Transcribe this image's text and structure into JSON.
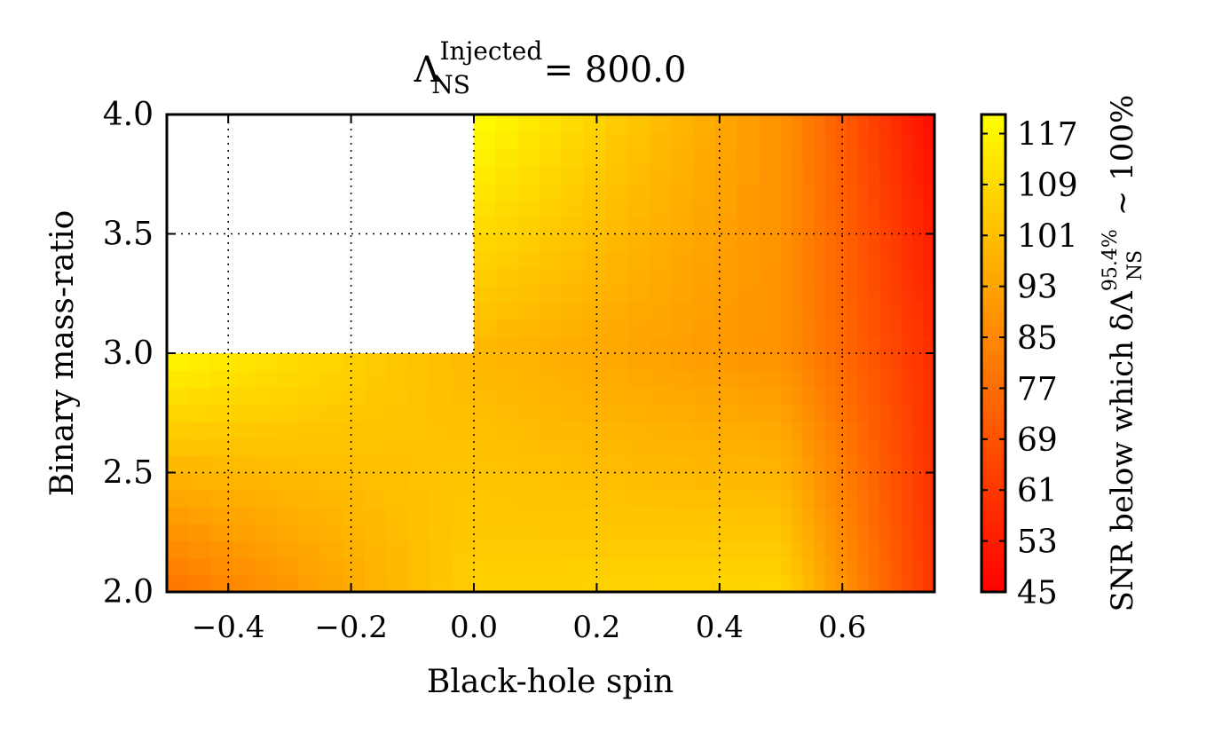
{
  "chart_data": {
    "type": "heatmap",
    "title": {
      "symbol": "Λ",
      "superscript": "Injected",
      "subscript": "NS",
      "rest": " = 800.0"
    },
    "xlabel": "Black-hole spin",
    "ylabel": "Binary mass-ratio",
    "xlim": [
      -0.5,
      0.75
    ],
    "ylim": [
      2.0,
      4.0
    ],
    "xticks": [
      -0.4,
      -0.2,
      0.0,
      0.2,
      0.4,
      0.6
    ],
    "xtick_labels": [
      "−0.4",
      "−0.2",
      "0.0",
      "0.2",
      "0.4",
      "0.6"
    ],
    "yticks": [
      2.0,
      2.5,
      3.0,
      3.5,
      4.0
    ],
    "ytick_labels": [
      "2.0",
      "2.5",
      "3.0",
      "3.5",
      "4.0"
    ],
    "grid": true,
    "colorbar": {
      "label": {
        "prefix": "SNR below which δΛ",
        "superscript": "95.4%",
        "subscript": "NS",
        "suffix": " ∼ 100%"
      },
      "vmin": 45,
      "vmax": 120,
      "ticks": [
        45,
        53,
        61,
        69,
        77,
        85,
        93,
        101,
        109,
        117
      ],
      "tick_labels": [
        "45",
        "53",
        "61",
        "69",
        "77",
        "85",
        "93",
        "101",
        "109",
        "117"
      ],
      "colormap": "autumn",
      "colors": [
        "#ff0000",
        "#ffff00"
      ]
    },
    "x": [
      -0.5,
      0.0,
      0.5,
      0.75
    ],
    "y": [
      2.0,
      3.0,
      4.0
    ],
    "z": [
      [
        78,
        106,
        108,
        60
      ],
      [
        118,
        99,
        88,
        58
      ],
      [
        null,
        120,
        88,
        48
      ]
    ]
  }
}
